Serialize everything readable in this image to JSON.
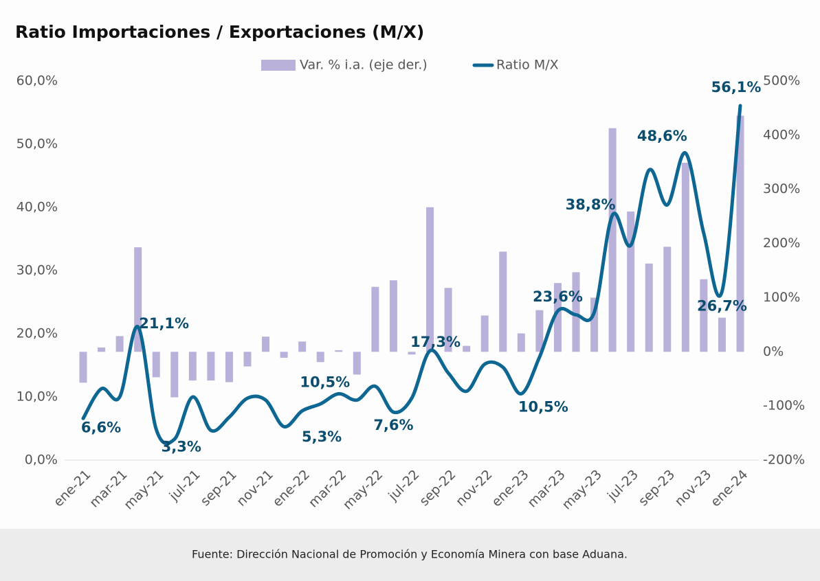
{
  "chart_data": {
    "type": "bar_line",
    "title": "Ratio Importaciones / Exportaciones (M/X)",
    "source": "Fuente: Dirección Nacional de Promoción y Economía Minera con base Aduana.",
    "categories": [
      "ene-21",
      null,
      "mar-21",
      null,
      "may-21",
      null,
      "jul-21",
      null,
      "sep-21",
      null,
      "nov-21",
      null,
      "ene-22",
      null,
      "mar-22",
      null,
      "may-22",
      null,
      "jul-22",
      null,
      "sep-22",
      null,
      "nov-22",
      null,
      "ene-23",
      null,
      "mar-23",
      null,
      "may-23",
      null,
      "jul-23",
      null,
      "sep-23",
      null,
      "nov-23",
      null,
      "ene-24"
    ],
    "series": [
      {
        "name": "Var. % i.a. (eje der.)",
        "color": "#b9b1d9",
        "axis": "y2",
        "values": [
          -57,
          8,
          29,
          193,
          -47,
          -84,
          -53,
          -53,
          -56,
          -27,
          28,
          -11,
          19,
          -19,
          3,
          -42,
          120,
          132,
          -5,
          267,
          118,
          11,
          67,
          185,
          34,
          77,
          127,
          147,
          100,
          413,
          259,
          163,
          194,
          349,
          134,
          63,
          436
        ]
      },
      {
        "name": "Ratio M/X",
        "color": "#0e6793",
        "axis": "y",
        "values": [
          6.6,
          11.3,
          10.0,
          21.1,
          4.9,
          3.3,
          10.0,
          4.7,
          6.8,
          9.8,
          9.5,
          5.3,
          7.8,
          8.9,
          10.5,
          9.5,
          11.7,
          7.6,
          9.8,
          17.3,
          13.8,
          10.9,
          15.2,
          14.7,
          10.5,
          16.3,
          23.6,
          23.0,
          23.4,
          38.8,
          34.0,
          45.9,
          40.4,
          48.6,
          35.9,
          26.7,
          56.1
        ],
        "value_labels": [
          "6,6%",
          null,
          null,
          "21,1%",
          null,
          "3,3%",
          null,
          null,
          null,
          null,
          null,
          "5,3%",
          null,
          null,
          "10,5%",
          null,
          null,
          "7,6%",
          null,
          "17,3%",
          null,
          null,
          null,
          null,
          "10,5%",
          null,
          "23,6%",
          null,
          null,
          "38,8%",
          null,
          null,
          null,
          "48,6%",
          null,
          "26,7%",
          "56,1%"
        ]
      }
    ],
    "ylim": [
      0,
      60
    ],
    "yticks": [
      {
        "value": 0,
        "label": "0,0%"
      },
      {
        "value": 10,
        "label": "10,0%"
      },
      {
        "value": 20,
        "label": "20,0%"
      },
      {
        "value": 30,
        "label": "30,0%"
      },
      {
        "value": 40,
        "label": "40,0%"
      },
      {
        "value": 50,
        "label": "50,0%"
      },
      {
        "value": 60,
        "label": "60,0%"
      }
    ],
    "y2lim": [
      -200,
      500
    ],
    "y2ticks": [
      {
        "value": -200,
        "label": "-200%"
      },
      {
        "value": -100,
        "label": "-100%"
      },
      {
        "value": 0,
        "label": "0%"
      },
      {
        "value": 100,
        "label": "100%"
      },
      {
        "value": 200,
        "label": "200%"
      },
      {
        "value": 300,
        "label": "300%"
      },
      {
        "value": 400,
        "label": "400%"
      },
      {
        "value": 500,
        "label": "500%"
      }
    ],
    "grid": false
  }
}
